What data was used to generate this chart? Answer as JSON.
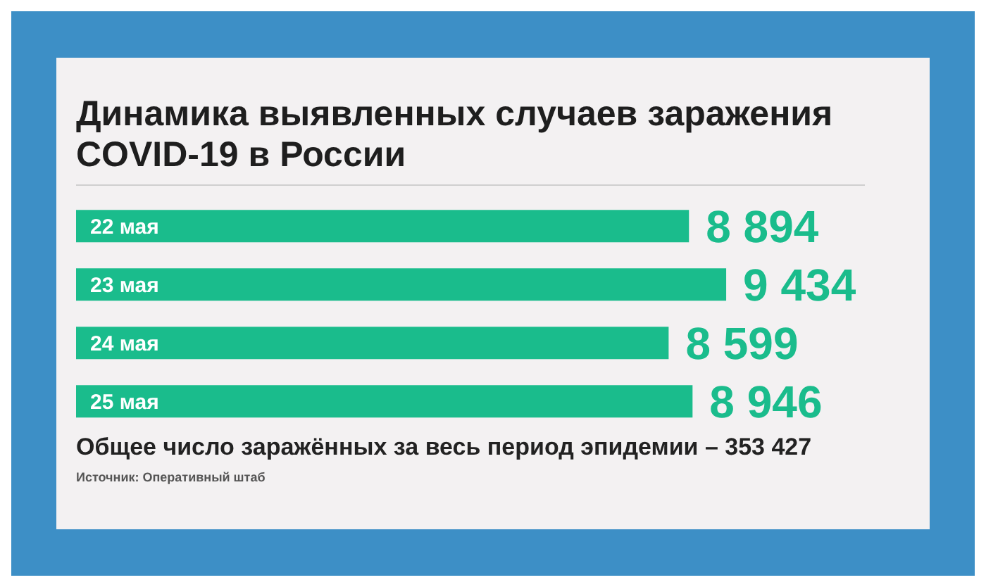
{
  "chart_data": {
    "type": "bar",
    "orientation": "horizontal",
    "title": "Динамика выявленных случаев заражения COVID-19 в России",
    "categories": [
      "22 мая",
      "23 мая",
      "24 мая",
      "25 мая"
    ],
    "values": [
      8894,
      9434,
      8599,
      8946
    ],
    "value_labels": [
      "8 894",
      "9 434",
      "8 599",
      "8 946"
    ],
    "color": "#1abc8c",
    "annotations": [
      "Общее число заражённых за весь период эпидемии – 353 427",
      "Источник: Оперативный штаб"
    ]
  }
}
